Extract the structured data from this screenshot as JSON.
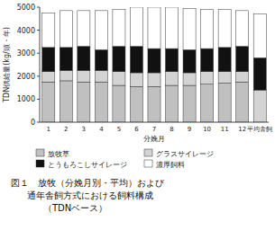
{
  "chart_data": {
    "type": "bar",
    "stacked": true,
    "xlabel": "分娩月",
    "ylabel": "TDN供給量(kg/頭・年)",
    "categories": [
      "1",
      "2",
      "3",
      "4",
      "5",
      "6",
      "7",
      "8",
      "9",
      "10",
      "11",
      "12",
      "平均舎飼"
    ],
    "series": [
      {
        "name": "放牧草",
        "color": "#c0c0c0",
        "values": [
          1750,
          1800,
          1750,
          1750,
          1600,
          1550,
          1550,
          1600,
          1600,
          1650,
          1700,
          1750,
          0
        ]
      },
      {
        "name": "グラスサイレージ",
        "color": "#d3d3d3",
        "values": [
          450,
          450,
          500,
          500,
          600,
          600,
          600,
          600,
          550,
          550,
          500,
          450,
          1400
        ]
      },
      {
        "name": "とうもろこしサイレージ",
        "color": "#111111",
        "values": [
          1050,
          1000,
          1050,
          900,
          1100,
          1150,
          1050,
          1000,
          1000,
          1000,
          1050,
          1100,
          1400
        ]
      },
      {
        "name": "濃厚飼料",
        "color": "#ffffff",
        "values": [
          1500,
          1600,
          1550,
          1700,
          1600,
          1700,
          1800,
          1800,
          1800,
          1700,
          1650,
          1550,
          1900
        ]
      }
    ],
    "ylim": [
      0,
      5000
    ],
    "yticks": [
      0,
      1000,
      2000,
      3000,
      4000,
      5000
    ],
    "legend": "bottom",
    "annotations": [
      "図１　放牧（分娩月別・平均）および",
      "通年舎飼方式における飼料構成",
      "（TDNベース）"
    ]
  }
}
